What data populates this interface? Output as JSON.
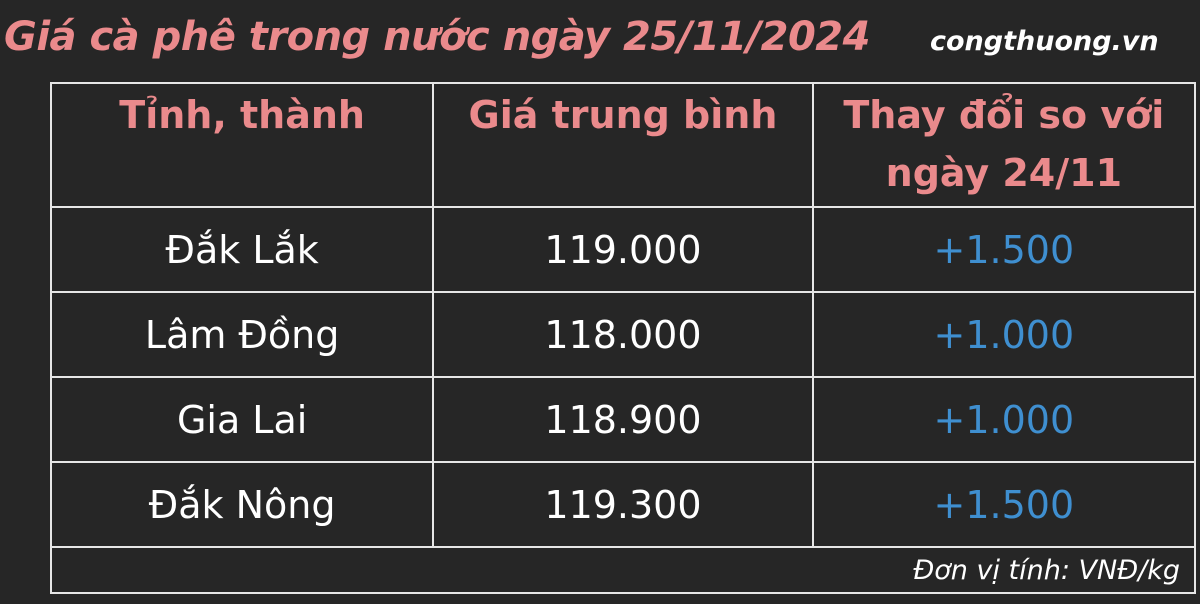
{
  "title": "Giá cà phê trong nước ngày 25/11/2024",
  "site": "congthuong.vn",
  "table": {
    "headers": [
      "Tỉnh, thành",
      "Giá trung bình",
      "Thay đổi so với ngày 24/11"
    ],
    "rows": [
      {
        "province": "Đắk Lắk",
        "price": "119.000",
        "change": "+1.500"
      },
      {
        "province": "Lâm Đồng",
        "price": "118.000",
        "change": "+1.000"
      },
      {
        "province": "Gia Lai",
        "price": "118.900",
        "change": "+1.000"
      },
      {
        "province": "Đắk Nông",
        "price": "119.300",
        "change": "+1.500"
      }
    ],
    "unit": "Đơn vị tính: VNĐ/kg"
  },
  "colors": {
    "title": "#ea8a8c",
    "change": "#3f8fd0",
    "background": "#262626"
  }
}
